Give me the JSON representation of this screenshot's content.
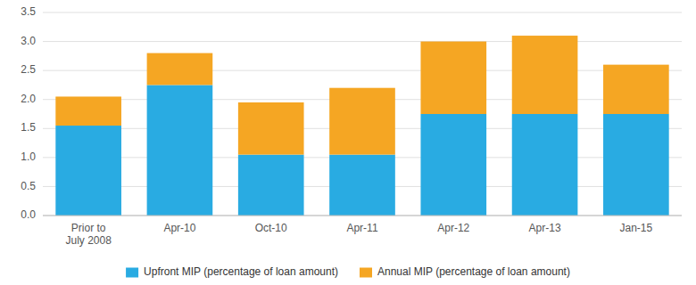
{
  "chart_data": {
    "type": "bar",
    "stacked": true,
    "categories": [
      "Prior to\nJuly 2008",
      "Apr-10",
      "Oct-10",
      "Apr-11",
      "Apr-12",
      "Apr-13",
      "Jan-15"
    ],
    "series": [
      {
        "name": "Upfront MIP (percentage of loan amount)",
        "color": "#29ABE2",
        "values": [
          1.55,
          2.25,
          1.05,
          1.05,
          1.75,
          1.75,
          1.75
        ]
      },
      {
        "name": "Annual MIP (percentage of loan amount)",
        "color": "#F5A623",
        "values": [
          0.5,
          0.55,
          0.9,
          1.15,
          1.25,
          1.35,
          0.85
        ]
      }
    ],
    "ylim": [
      0,
      3.5
    ],
    "yticks": [
      {
        "value": 0,
        "label": "0.0"
      },
      0.5,
      {
        "value": 1.0,
        "label": "1.0"
      },
      1.5,
      {
        "value": 2.0,
        "label": "2.0"
      },
      2.5,
      {
        "value": 3.0,
        "label": "3.0"
      },
      3.5
    ],
    "grid": true,
    "legend": "bottom"
  }
}
